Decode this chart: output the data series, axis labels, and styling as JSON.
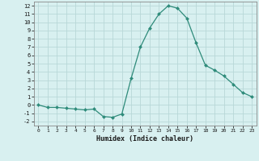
{
  "xlabel": "Humidex (Indice chaleur)",
  "x": [
    0,
    1,
    2,
    3,
    4,
    5,
    6,
    7,
    8,
    9,
    10,
    11,
    12,
    13,
    14,
    15,
    16,
    17,
    18,
    19,
    20,
    21,
    22,
    23
  ],
  "y": [
    0.0,
    -0.3,
    -0.3,
    -0.4,
    -0.5,
    -0.6,
    -0.5,
    -1.4,
    -1.5,
    -1.1,
    3.2,
    7.0,
    9.3,
    11.0,
    12.0,
    11.7,
    10.5,
    7.5,
    4.8,
    4.2,
    3.5,
    2.5,
    1.5,
    1.0
  ],
  "line_color": "#2e8b7a",
  "marker": "D",
  "marker_size": 2.0,
  "bg_color": "#d8f0f0",
  "grid_color": "#b8d8d8",
  "xlim": [
    -0.5,
    23.5
  ],
  "ylim": [
    -2.5,
    12.5
  ],
  "xticks": [
    0,
    1,
    2,
    3,
    4,
    5,
    6,
    7,
    8,
    9,
    10,
    11,
    12,
    13,
    14,
    15,
    16,
    17,
    18,
    19,
    20,
    21,
    22,
    23
  ],
  "yticks": [
    -2,
    -1,
    0,
    1,
    2,
    3,
    4,
    5,
    6,
    7,
    8,
    9,
    10,
    11,
    12
  ]
}
